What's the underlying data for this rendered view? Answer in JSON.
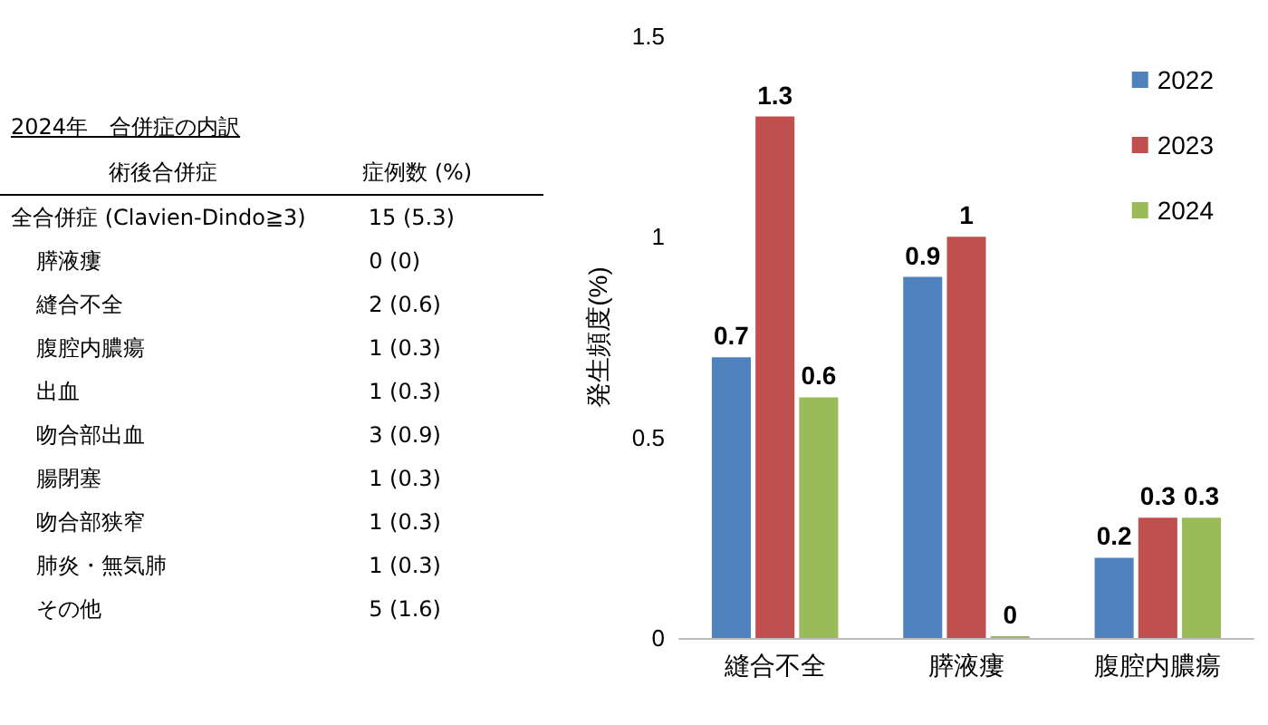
{
  "chart_data": [
    {
      "type": "other",
      "title": "2024年　合併症の内訳",
      "xlabel": "術後合併症",
      "ylabel": "症例数 (%)",
      "categories": [
        "全合併症 (Clavien-Dindo≧3)",
        "膵液瘻",
        "縫合不全",
        "腹腔内膿瘍",
        "出血",
        "吻合部出血",
        "腸閉塞",
        "吻合部狭窄",
        "肺炎・無気肺",
        "その他"
      ],
      "value_labels": [
        "15 (5.3)",
        "0 (0)",
        "2 (0.6)",
        "1 (0.3)",
        "1 (0.3)",
        "3 (0.9)",
        "1 (0.3)",
        "1 (0.3)",
        "1 (0.3)",
        "5 (1.6)"
      ]
    },
    {
      "type": "bar",
      "ylabel": "発生頻度(%)",
      "categories": [
        "縫合不全",
        "膵液瘻",
        "腹腔内膿瘍"
      ],
      "series": [
        {
          "name": "2022",
          "color": "#4f81bd",
          "values": [
            0.7,
            0.9,
            0.2
          ]
        },
        {
          "name": "2023",
          "color": "#c0504d",
          "values": [
            1.3,
            1,
            0.3
          ]
        },
        {
          "name": "2024",
          "color": "#9bbb59",
          "values": [
            0.6,
            0,
            0.3
          ]
        }
      ],
      "ylim": [
        0,
        1.5
      ],
      "yticks": [
        0,
        0.5,
        1,
        1.5
      ],
      "data_labels": true,
      "legend": "top right"
    }
  ]
}
